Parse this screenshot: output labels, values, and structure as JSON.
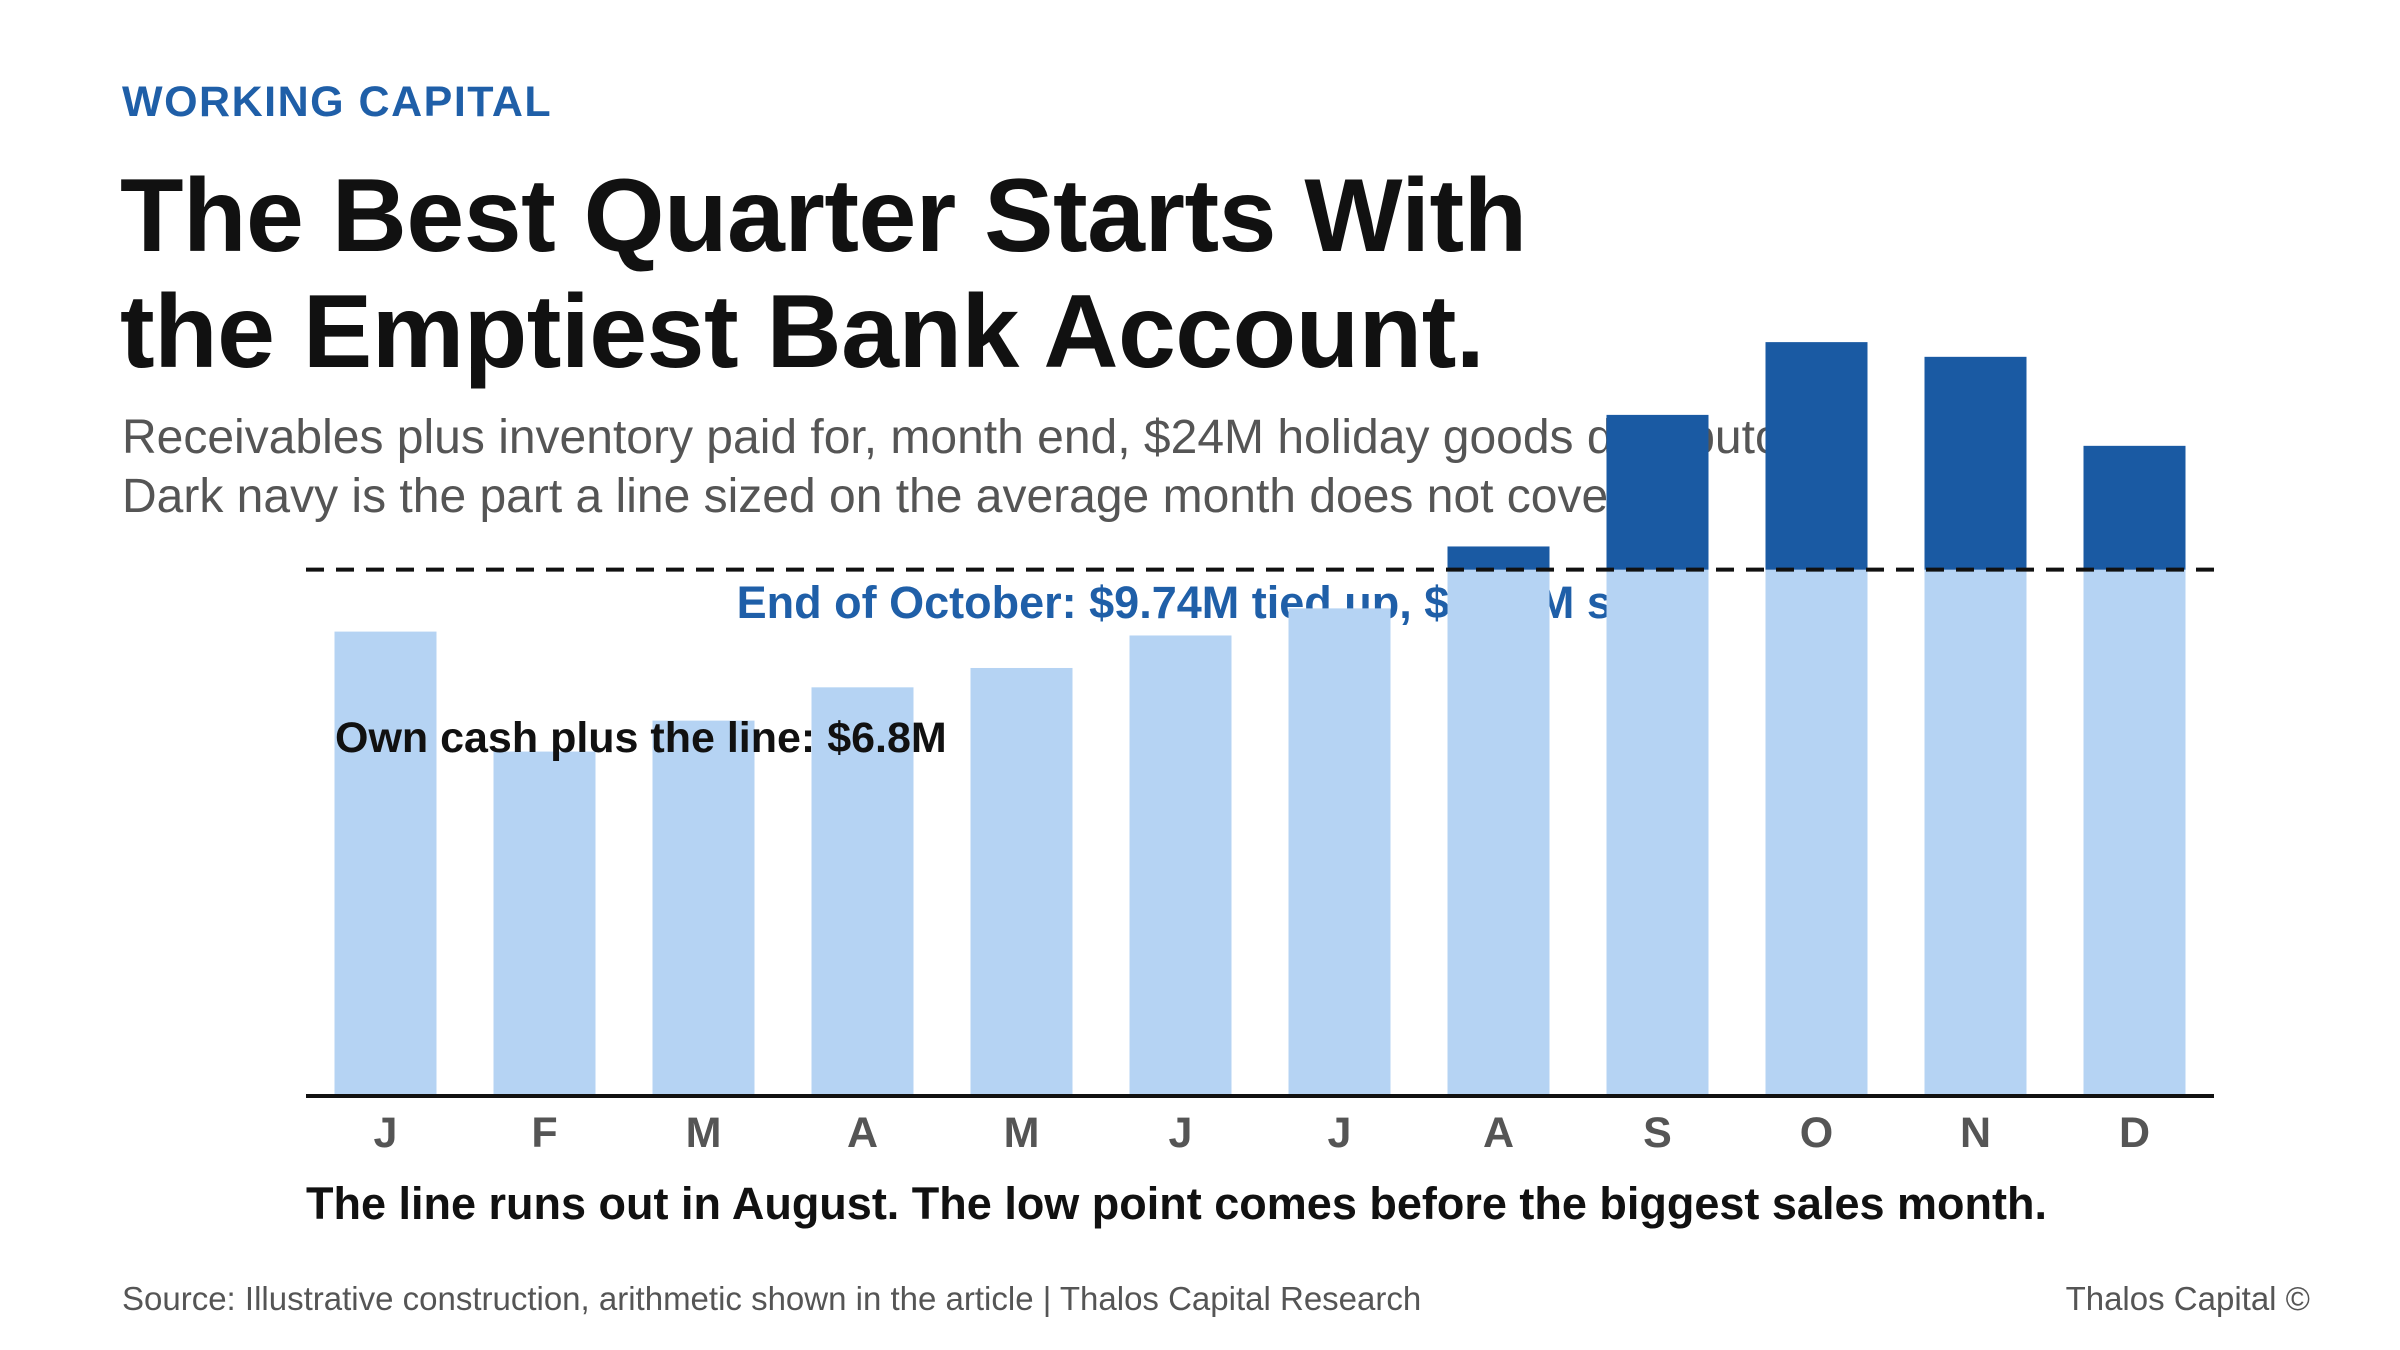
{
  "header": {
    "eyebrow": "WORKING CAPITAL",
    "title_line1": "The Best Quarter Starts With",
    "title_line2": "the Emptiest Bank Account.",
    "subtitle_line1": "Receivables plus inventory paid for, month end, $24M holiday goods distributor.",
    "subtitle_line2": "Dark navy is the part a line sized on the average month does not cover."
  },
  "chart_data": {
    "type": "bar",
    "title": "End of October: $9.74M tied up, $2.94M short",
    "categories": [
      "J",
      "F",
      "M",
      "A",
      "M",
      "J",
      "J",
      "A",
      "S",
      "O",
      "N",
      "D"
    ],
    "values": [
      6.0,
      4.45,
      4.85,
      5.28,
      5.53,
      5.95,
      6.3,
      7.1,
      8.8,
      9.74,
      9.55,
      8.4
    ],
    "reference_line": {
      "value": 6.8,
      "label": "Own cash plus the line: $6.8M",
      "style": "dashed"
    },
    "ylim": [
      0,
      10
    ],
    "grid": false,
    "colors": {
      "covered": "#b5d3f3",
      "uncovered": "#1a5aa3",
      "reference": "#111111",
      "axis": "#111111"
    }
  },
  "caption": "The line runs out in August. The low point comes before the biggest sales month.",
  "footer": {
    "source": "Source: Illustrative construction, arithmetic shown in the article | Thalos Capital Research",
    "brand": "Thalos Capital ©"
  }
}
